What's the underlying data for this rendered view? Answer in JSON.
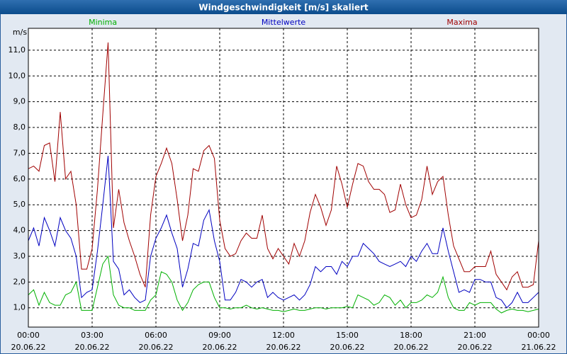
{
  "chart_data": {
    "type": "line",
    "title": "Windgeschwindigkeit [m/s] skaliert",
    "y_label": "m/s",
    "x": [
      0,
      0.25,
      0.5,
      0.75,
      1,
      1.25,
      1.5,
      1.75,
      2,
      2.25,
      2.5,
      2.75,
      3,
      3.25,
      3.5,
      3.75,
      4,
      4.25,
      4.5,
      4.75,
      5,
      5.25,
      5.5,
      5.75,
      6,
      6.25,
      6.5,
      6.75,
      7,
      7.25,
      7.5,
      7.75,
      8,
      8.25,
      8.5,
      8.75,
      9,
      9.25,
      9.5,
      9.75,
      10,
      10.25,
      10.5,
      10.75,
      11,
      11.25,
      11.5,
      11.75,
      12,
      12.25,
      12.5,
      12.75,
      13,
      13.25,
      13.5,
      13.75,
      14,
      14.25,
      14.5,
      14.75,
      15,
      15.25,
      15.5,
      15.75,
      16,
      16.25,
      16.5,
      16.75,
      17,
      17.25,
      17.5,
      17.75,
      18,
      18.25,
      18.5,
      18.75,
      19,
      19.25,
      19.5,
      19.75,
      20,
      20.25,
      20.5,
      20.75,
      21,
      21.25,
      21.5,
      21.75,
      22,
      22.25,
      22.5,
      22.75,
      23,
      23.25,
      23.5,
      23.75,
      24
    ],
    "series": [
      {
        "name": "Minima",
        "color": "#00b000",
        "values": [
          1.5,
          1.7,
          1.1,
          1.6,
          1.2,
          1.1,
          1.1,
          1.5,
          1.6,
          2.0,
          0.9,
          0.9,
          0.9,
          1.8,
          2.7,
          3.0,
          1.5,
          1.1,
          1.0,
          1.0,
          0.9,
          0.9,
          0.9,
          1.3,
          1.5,
          2.4,
          2.3,
          2.0,
          1.3,
          0.9,
          1.2,
          1.7,
          1.9,
          2.0,
          2.0,
          1.4,
          1.0,
          1.0,
          0.95,
          1.0,
          1.0,
          1.1,
          1.0,
          0.95,
          1.0,
          0.95,
          0.9,
          0.9,
          0.85,
          0.9,
          0.95,
          0.9,
          0.9,
          0.95,
          1.0,
          1.0,
          0.95,
          1.0,
          1.0,
          1.0,
          1.05,
          1.0,
          1.5,
          1.4,
          1.3,
          1.1,
          1.2,
          1.5,
          1.4,
          1.1,
          1.3,
          1.0,
          1.2,
          1.2,
          1.3,
          1.5,
          1.4,
          1.6,
          2.2,
          1.4,
          1.0,
          0.9,
          0.9,
          1.2,
          1.1,
          1.2,
          1.2,
          1.2,
          0.95,
          0.8,
          0.9,
          0.95,
          0.9,
          0.9,
          0.85,
          0.9,
          0.95
        ]
      },
      {
        "name": "Mittelwerte",
        "color": "#0000c0",
        "values": [
          3.6,
          4.1,
          3.4,
          4.5,
          4.0,
          3.4,
          4.5,
          4.0,
          3.7,
          3.0,
          1.4,
          1.6,
          1.7,
          3.2,
          5.0,
          6.9,
          2.8,
          2.5,
          1.5,
          1.7,
          1.4,
          1.2,
          1.3,
          3.0,
          3.7,
          4.1,
          4.6,
          3.9,
          3.3,
          1.8,
          2.5,
          3.5,
          3.4,
          4.4,
          4.8,
          3.6,
          2.8,
          1.3,
          1.3,
          1.6,
          2.1,
          2.0,
          1.8,
          2.0,
          2.1,
          1.4,
          1.6,
          1.4,
          1.3,
          1.4,
          1.5,
          1.3,
          1.5,
          1.9,
          2.6,
          2.4,
          2.6,
          2.6,
          2.3,
          2.8,
          2.6,
          3.0,
          3.0,
          3.5,
          3.3,
          3.1,
          2.8,
          2.7,
          2.6,
          2.7,
          2.8,
          2.6,
          3.0,
          2.8,
          3.2,
          3.5,
          3.1,
          3.1,
          4.1,
          3.2,
          2.4,
          1.6,
          1.7,
          1.6,
          2.1,
          2.1,
          2.0,
          2.0,
          1.4,
          1.3,
          1.0,
          1.2,
          1.6,
          1.2,
          1.2,
          1.4,
          1.6
        ]
      },
      {
        "name": "Maxima",
        "color": "#a00000",
        "values": [
          6.4,
          6.5,
          6.3,
          7.3,
          7.4,
          5.9,
          8.6,
          6.0,
          6.3,
          5.0,
          2.5,
          2.5,
          3.3,
          5.6,
          8.5,
          11.3,
          4.1,
          5.6,
          4.3,
          3.6,
          3.0,
          2.3,
          1.8,
          4.6,
          6.1,
          6.6,
          7.2,
          6.6,
          5.2,
          3.6,
          4.6,
          6.4,
          6.3,
          7.1,
          7.3,
          6.8,
          4.4,
          3.3,
          3.0,
          3.1,
          3.6,
          3.9,
          3.7,
          3.7,
          4.6,
          3.3,
          2.9,
          3.3,
          3.0,
          2.7,
          3.5,
          3.0,
          3.6,
          4.7,
          5.4,
          4.9,
          4.2,
          4.8,
          6.5,
          5.8,
          4.9,
          5.8,
          6.6,
          6.5,
          5.9,
          5.6,
          5.6,
          5.4,
          4.7,
          4.8,
          5.8,
          5.0,
          4.5,
          4.6,
          5.2,
          6.5,
          5.4,
          5.9,
          6.1,
          4.6,
          3.4,
          2.9,
          2.4,
          2.4,
          2.6,
          2.6,
          2.6,
          3.2,
          2.3,
          2.0,
          1.7,
          2.2,
          2.4,
          1.8,
          1.8,
          1.9,
          3.6
        ]
      }
    ],
    "xlim": [
      0,
      24
    ],
    "xticks": [
      {
        "value": 0,
        "label": "00:00"
      },
      {
        "value": 3,
        "label": "03:00"
      },
      {
        "value": 6,
        "label": "06:00"
      },
      {
        "value": 9,
        "label": "09:00"
      },
      {
        "value": 12,
        "label": "12:00"
      },
      {
        "value": 15,
        "label": "15:00"
      },
      {
        "value": 18,
        "label": "18:00"
      },
      {
        "value": 21,
        "label": "21:00"
      },
      {
        "value": 24,
        "label": "00:00"
      }
    ],
    "xtick_dates": [
      "20.06.22",
      "20.06.22",
      "20.06.22",
      "20.06.22",
      "20.06.22",
      "20.06.22",
      "20.06.22",
      "20.06.22",
      "21.06.22"
    ],
    "ylim": [
      0.25,
      11.85
    ],
    "yticks": [
      {
        "value": 1,
        "label": "1,0"
      },
      {
        "value": 2,
        "label": "2,0"
      },
      {
        "value": 3,
        "label": "3,0"
      },
      {
        "value": 4,
        "label": "4,0"
      },
      {
        "value": 5,
        "label": "5,0"
      },
      {
        "value": 6,
        "label": "6,0"
      },
      {
        "value": 7,
        "label": "7,0"
      },
      {
        "value": 8,
        "label": "8,0"
      },
      {
        "value": 9,
        "label": "9,0"
      },
      {
        "value": 10,
        "label": "10,0"
      },
      {
        "value": 11,
        "label": "11,0"
      }
    ],
    "grid": true
  }
}
